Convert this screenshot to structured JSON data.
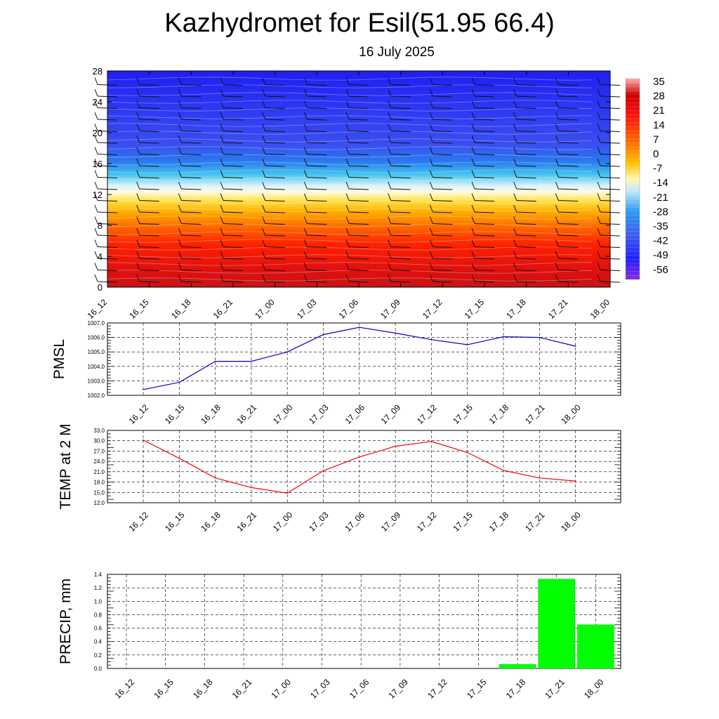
{
  "title": "Kazhydromet for Esil(51.95 66.4)",
  "subtitle": "16 July 2025",
  "colorbar": {
    "labels": [
      "35",
      "28",
      "21",
      "14",
      "7",
      "0",
      "-7",
      "-14",
      "-21",
      "-28",
      "-35",
      "-42",
      "-49",
      "-56"
    ]
  },
  "chart_data": [
    {
      "type": "heatmap",
      "title": "",
      "xlabel": "",
      "ylabel": "",
      "categories": [
        "16_12",
        "16_15",
        "16_18",
        "16_21",
        "17_00",
        "17_03",
        "17_06",
        "17_09",
        "17_12",
        "17_15",
        "17_18",
        "17_21",
        "18_00"
      ],
      "y_ticks": [
        "0",
        "4",
        "8",
        "12",
        "16",
        "20",
        "24",
        "28"
      ],
      "ylim": [
        0,
        28
      ],
      "note_fields": "temperature shading with wind barbs",
      "shading_levels": [
        35,
        28,
        21,
        14,
        7,
        0,
        -7,
        -14,
        -21,
        -28,
        -35,
        -42,
        -49,
        -56
      ]
    },
    {
      "type": "line",
      "ylabel": "PMSL",
      "categories": [
        "16_12",
        "16_15",
        "16_18",
        "16_21",
        "17_00",
        "17_03",
        "17_06",
        "17_09",
        "17_12",
        "17_15",
        "17_18",
        "17_21",
        "18_00"
      ],
      "y_ticks": [
        "1007.0",
        "1006.0",
        "1005.0",
        "1004.0",
        "1003.0",
        "1002.0"
      ],
      "ylim": [
        1002.0,
        1007.0
      ],
      "values": [
        1002.4,
        1002.9,
        1004.35,
        1004.35,
        1005.0,
        1006.2,
        1006.7,
        1006.3,
        1005.85,
        1005.5,
        1006.05,
        1006.0,
        1005.4
      ],
      "color": "#0000cc",
      "grid": true
    },
    {
      "type": "line",
      "ylabel": "TEMP at 2 M",
      "categories": [
        "16_12",
        "16_15",
        "16_18",
        "16_21",
        "17_00",
        "17_03",
        "17_06",
        "17_09",
        "17_12",
        "17_15",
        "17_18",
        "17_21",
        "18_00"
      ],
      "y_ticks": [
        "33.0",
        "30.0",
        "27.0",
        "24.0",
        "21.0",
        "18.0",
        "15.0",
        "12.0"
      ],
      "ylim": [
        12.0,
        33.0
      ],
      "values": [
        30.2,
        24.9,
        19.2,
        16.4,
        14.8,
        21.3,
        25.3,
        28.4,
        29.8,
        26.6,
        21.4,
        19.2,
        18.3
      ],
      "color": "#ff0000",
      "grid": true
    },
    {
      "type": "bar",
      "ylabel": "PRECIP, mm",
      "categories": [
        "16_12",
        "16_15",
        "16_18",
        "16_21",
        "17_00",
        "17_03",
        "17_06",
        "17_09",
        "17_12",
        "17_15",
        "17_18",
        "17_21",
        "18_00"
      ],
      "y_ticks": [
        "1.4",
        "1.2",
        "1.0",
        "0.8",
        "0.6",
        "0.4",
        "0.2",
        "0.0"
      ],
      "ylim": [
        0.0,
        1.4
      ],
      "values": [
        0,
        0,
        0,
        0,
        0,
        0,
        0,
        0,
        0,
        0,
        0.06,
        1.33,
        0.65
      ],
      "color": "#00ff00",
      "grid": true
    }
  ]
}
